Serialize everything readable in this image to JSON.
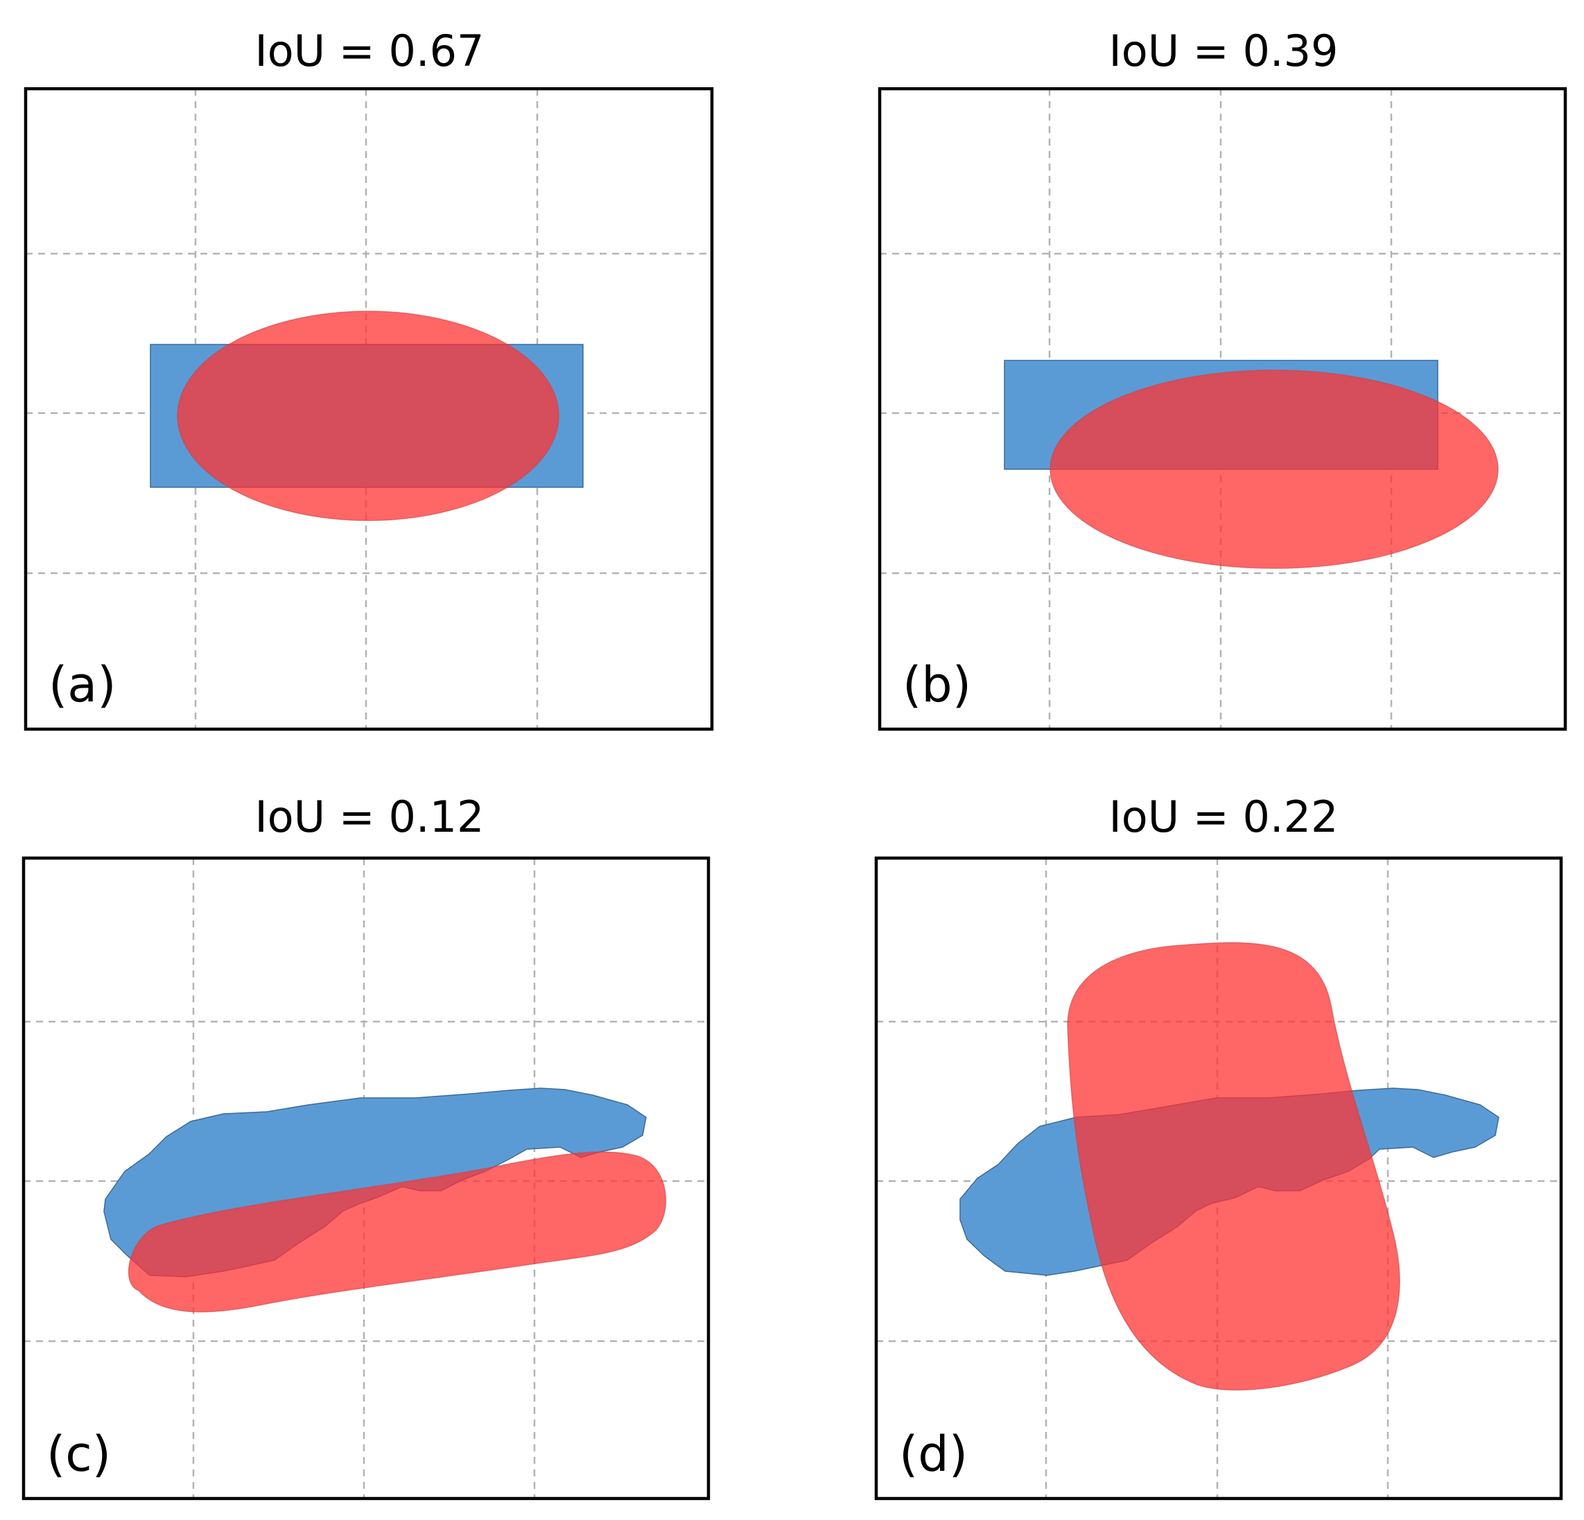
{
  "panels": [
    {
      "id": "a",
      "title": "IoU = 0.67",
      "label": "(a)"
    },
    {
      "id": "b",
      "title": "IoU = 0.39",
      "label": "(b)"
    },
    {
      "id": "c",
      "title": "IoU = 0.12",
      "label": "(c)"
    },
    {
      "id": "d",
      "title": "IoU = 0.22",
      "label": "(d)"
    }
  ],
  "colors": {
    "blue_shape": "#5b9bd5",
    "red_shape": "#ff3333",
    "grid": "#b3b3b3",
    "frame": "#000000"
  }
}
